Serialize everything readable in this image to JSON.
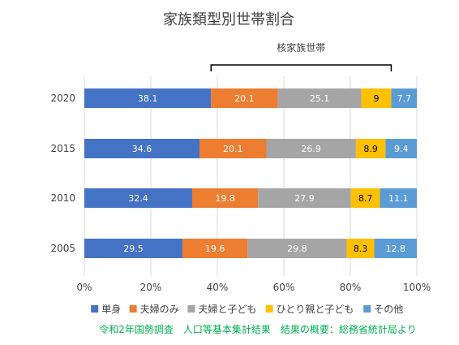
{
  "chart_data": {
    "type": "bar",
    "orientation": "horizontal",
    "stacked": "percent",
    "title": "家族類型別世帯割合",
    "categories": [
      "2020",
      "2015",
      "2010",
      "2005"
    ],
    "series": [
      {
        "name": "単身",
        "values": [
          38.1,
          34.6,
          32.4,
          29.5
        ],
        "color": "#4472C4",
        "label_color": "#ffffff"
      },
      {
        "name": "夫婦のみ",
        "values": [
          20.1,
          20.1,
          19.8,
          19.6
        ],
        "color": "#ED7D31",
        "label_color": "#ffffff"
      },
      {
        "name": "夫婦と子ども",
        "values": [
          25.1,
          26.9,
          27.9,
          29.8
        ],
        "color": "#A5A5A5",
        "label_color": "#ffffff"
      },
      {
        "name": "ひとり親と子ども",
        "values": [
          9,
          8.9,
          8.7,
          8.3
        ],
        "color": "#FFC000",
        "label_color": "#000000"
      },
      {
        "name": "その他",
        "values": [
          7.7,
          9.4,
          11.1,
          12.8
        ],
        "color": "#5B9BD5",
        "label_color": "#ffffff"
      }
    ],
    "x_ticks": [
      "0%",
      "20%",
      "40%",
      "60%",
      "80%",
      "100%"
    ],
    "xlim": [
      0,
      100
    ],
    "grid": "vertical",
    "legend": "bottom",
    "annotation": {
      "label": "核家族世帯",
      "span": [
        "夫婦のみ",
        "夫婦と子ども",
        "ひとり親と子ども"
      ]
    },
    "source": "令和2年国勢調査　人口等基本集計結果　結果の概要：総務省統計局より"
  },
  "colors": {
    "axis_text": "#404040",
    "gridline": "#D9D9D9",
    "source_text": "#00B050"
  }
}
